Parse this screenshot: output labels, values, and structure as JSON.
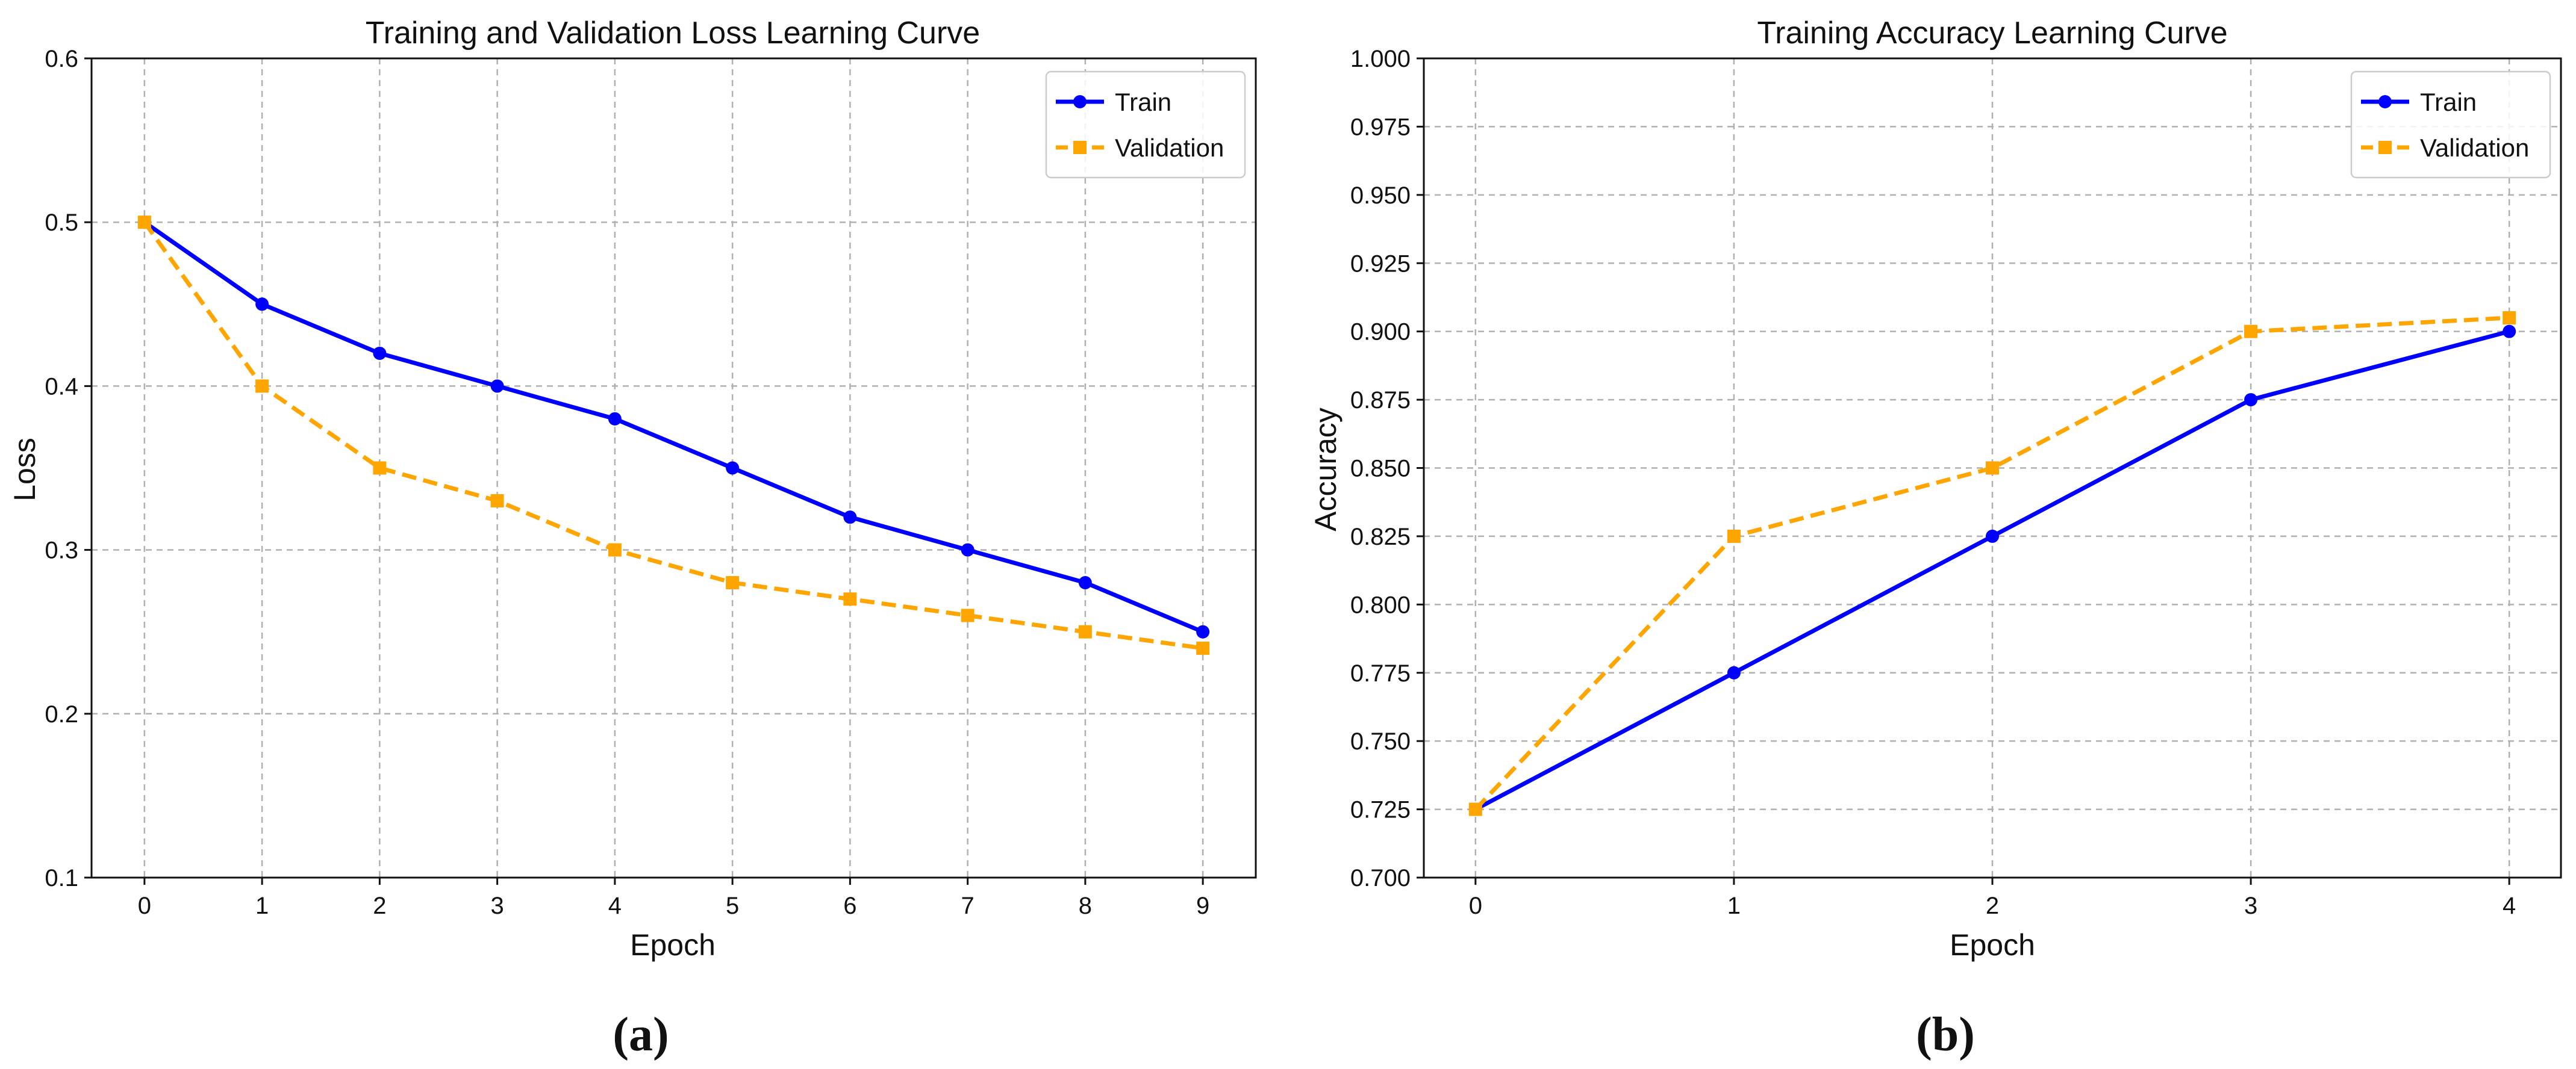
{
  "colors": {
    "train": "#0000ff",
    "validation": "#ffa500"
  },
  "chart_data": [
    {
      "type": "line",
      "panel_label": "(a)",
      "title": "Training and Validation Loss Learning Curve",
      "xlabel": "Epoch",
      "ylabel": "Loss",
      "x": [
        0,
        1,
        2,
        3,
        4,
        5,
        6,
        7,
        8,
        9
      ],
      "xlim": [
        -0.45,
        9.45
      ],
      "ylim": [
        0.1,
        0.6
      ],
      "xticks": [
        "0",
        "1",
        "2",
        "3",
        "4",
        "5",
        "6",
        "7",
        "8",
        "9"
      ],
      "yticks": [
        "0.1",
        "0.2",
        "0.3",
        "0.4",
        "0.5",
        "0.6"
      ],
      "grid": true,
      "legend": "top-right",
      "series": [
        {
          "name": "Train",
          "style": "solid",
          "marker": "circle",
          "values": [
            0.5,
            0.45,
            0.42,
            0.4,
            0.38,
            0.35,
            0.32,
            0.3,
            0.28,
            0.25
          ]
        },
        {
          "name": "Validation",
          "style": "dashed",
          "marker": "square",
          "values": [
            0.5,
            0.4,
            0.35,
            0.33,
            0.3,
            0.28,
            0.27,
            0.26,
            0.25,
            0.24
          ]
        }
      ]
    },
    {
      "type": "line",
      "panel_label": "(b)",
      "title": "Training Accuracy Learning Curve",
      "xlabel": "Epoch",
      "ylabel": "Accuracy",
      "x": [
        0,
        1,
        2,
        3,
        4
      ],
      "xlim": [
        -0.2,
        4.2
      ],
      "ylim": [
        0.7,
        1.0
      ],
      "xticks": [
        "0",
        "1",
        "2",
        "3",
        "4"
      ],
      "yticks": [
        "0.700",
        "0.725",
        "0.750",
        "0.775",
        "0.800",
        "0.825",
        "0.850",
        "0.875",
        "0.900",
        "0.925",
        "0.950",
        "0.975",
        "1.000"
      ],
      "grid": true,
      "legend": "top-right",
      "series": [
        {
          "name": "Train",
          "style": "solid",
          "marker": "circle",
          "values": [
            0.725,
            0.775,
            0.825,
            0.875,
            0.9
          ]
        },
        {
          "name": "Validation",
          "style": "dashed",
          "marker": "square",
          "values": [
            0.725,
            0.825,
            0.85,
            0.9,
            0.905
          ]
        }
      ]
    }
  ]
}
